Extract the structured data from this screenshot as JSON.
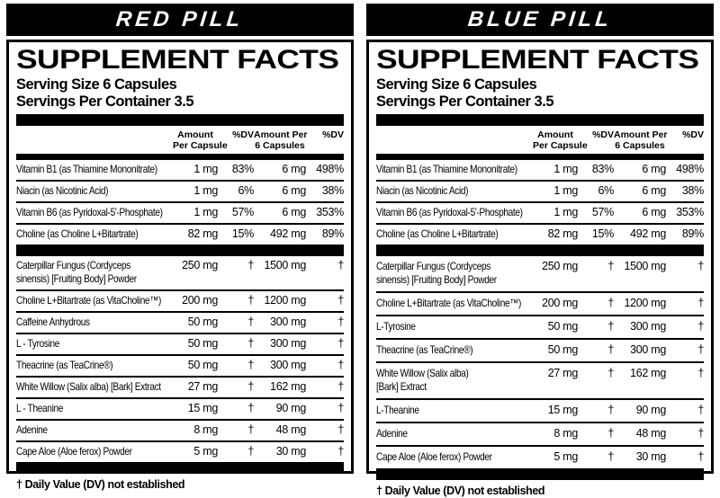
{
  "panels": [
    {
      "title": "RED PILL",
      "heading": "SUPPLEMENT FACTS",
      "serving_size": "Serving Size 6 Capsules",
      "servings_per_container": "Servings Per Container 3.5",
      "columns": [
        "Amount\nPer Capsule",
        "%DV",
        "Amount Per\n6 Capsules",
        "%DV"
      ],
      "vitamin_rows": [
        {
          "name": "Vitamin B1 (as Thiamine Mononitrate)",
          "per_capsule": "1 mg",
          "dv_capsule": "83%",
          "per_six": "6 mg",
          "dv_six": "498%"
        },
        {
          "name": "Niacin (as Nicotinic Acid)",
          "per_capsule": "1 mg",
          "dv_capsule": "6%",
          "per_six": "6 mg",
          "dv_six": "38%"
        },
        {
          "name": "Vitamin B6 (as Pyridoxal-5'-Phosphate)",
          "per_capsule": "1 mg",
          "dv_capsule": "57%",
          "per_six": "6 mg",
          "dv_six": "353%"
        },
        {
          "name": "Choline (as Choline L+Bitartrate)",
          "per_capsule": "82 mg",
          "dv_capsule": "15%",
          "per_six": "492 mg",
          "dv_six": "89%"
        }
      ],
      "ingredient_rows": [
        {
          "name": "Caterpillar Fungus (Cordyceps\nsinensis) [Fruiting Body] Powder",
          "per_capsule": "250 mg",
          "dv_capsule": "†",
          "per_six": "1500 mg",
          "dv_six": "†"
        },
        {
          "name": "Choline L+Bitartrate (as VitaCholine™)",
          "per_capsule": "200 mg",
          "dv_capsule": "†",
          "per_six": "1200 mg",
          "dv_six": "†"
        },
        {
          "name": "Caffeine Anhydrous",
          "per_capsule": "50 mg",
          "dv_capsule": "†",
          "per_six": "300 mg",
          "dv_six": "†"
        },
        {
          "name": "L - Tyrosine",
          "per_capsule": "50 mg",
          "dv_capsule": "†",
          "per_six": "300 mg",
          "dv_six": "†"
        },
        {
          "name": "Theacrine (as TeaCrine®)",
          "per_capsule": "50 mg",
          "dv_capsule": "†",
          "per_six": "300 mg",
          "dv_six": "†"
        },
        {
          "name": "White Willow (Salix alba) [Bark] Extract",
          "per_capsule": "27 mg",
          "dv_capsule": "†",
          "per_six": "162 mg",
          "dv_six": "†"
        },
        {
          "name": "L - Theanine",
          "per_capsule": "15 mg",
          "dv_capsule": "†",
          "per_six": "90 mg",
          "dv_six": "†"
        },
        {
          "name": "Adenine",
          "per_capsule": "8 mg",
          "dv_capsule": "†",
          "per_six": "48 mg",
          "dv_six": "†"
        },
        {
          "name": "Cape Aloe (Aloe ferox) Powder",
          "per_capsule": "5 mg",
          "dv_capsule": "†",
          "per_six": "30 mg",
          "dv_six": "†"
        }
      ],
      "footnote": "† Daily Value (DV) not established"
    },
    {
      "title": "BLUE PILL",
      "heading": "SUPPLEMENT FACTS",
      "serving_size": "Serving Size 6 Capsules",
      "servings_per_container": "Servings Per Container 3.5",
      "columns": [
        "Amount\nPer Capsule",
        "%DV",
        "Amount Per\n6 Capsules",
        "%DV"
      ],
      "vitamin_rows": [
        {
          "name": "Vitamin B1 (as Thiamine Mononitrate)",
          "per_capsule": "1 mg",
          "dv_capsule": "83%",
          "per_six": "6 mg",
          "dv_six": "498%"
        },
        {
          "name": "Niacin (as Nicotinic Acid)",
          "per_capsule": "1 mg",
          "dv_capsule": "6%",
          "per_six": "6 mg",
          "dv_six": "38%"
        },
        {
          "name": "Vitamin B6 (as Pyridoxal-5'-Phosphate)",
          "per_capsule": "1 mg",
          "dv_capsule": "57%",
          "per_six": "6 mg",
          "dv_six": "353%"
        },
        {
          "name": "Choline (as Choline L+Bitartrate)",
          "per_capsule": "82 mg",
          "dv_capsule": "15%",
          "per_six": "492 mg",
          "dv_six": "89%"
        }
      ],
      "ingredient_rows": [
        {
          "name": "Caterpillar Fungus (Cordyceps\nsinensis) [Fruiting Body] Powder",
          "per_capsule": "250 mg",
          "dv_capsule": "†",
          "per_six": "1500 mg",
          "dv_six": "†"
        },
        {
          "name": "Choline L+Bitartrate (as VitaCholine™)",
          "per_capsule": "200 mg",
          "dv_capsule": "†",
          "per_six": "1200 mg",
          "dv_six": "†"
        },
        {
          "name": "L-Tyrosine",
          "per_capsule": "50 mg",
          "dv_capsule": "†",
          "per_six": "300 mg",
          "dv_six": "†"
        },
        {
          "name": "Theacrine (as TeaCrine®)",
          "per_capsule": "50 mg",
          "dv_capsule": "†",
          "per_six": "300 mg",
          "dv_six": "†"
        },
        {
          "name": "White Willow (Salix alba)\n[Bark] Extract",
          "per_capsule": "27 mg",
          "dv_capsule": "†",
          "per_six": "162 mg",
          "dv_six": "†"
        },
        {
          "name": "L-Theanine",
          "per_capsule": "15 mg",
          "dv_capsule": "†",
          "per_six": "90 mg",
          "dv_six": "†"
        },
        {
          "name": "Adenine",
          "per_capsule": "8 mg",
          "dv_capsule": "†",
          "per_six": "48 mg",
          "dv_six": "†"
        },
        {
          "name": "Cape Aloe (Aloe ferox) Powder",
          "per_capsule": "5 mg",
          "dv_capsule": "†",
          "per_six": "30 mg",
          "dv_six": "†"
        }
      ],
      "footnote": "† Daily Value (DV) not established"
    }
  ]
}
